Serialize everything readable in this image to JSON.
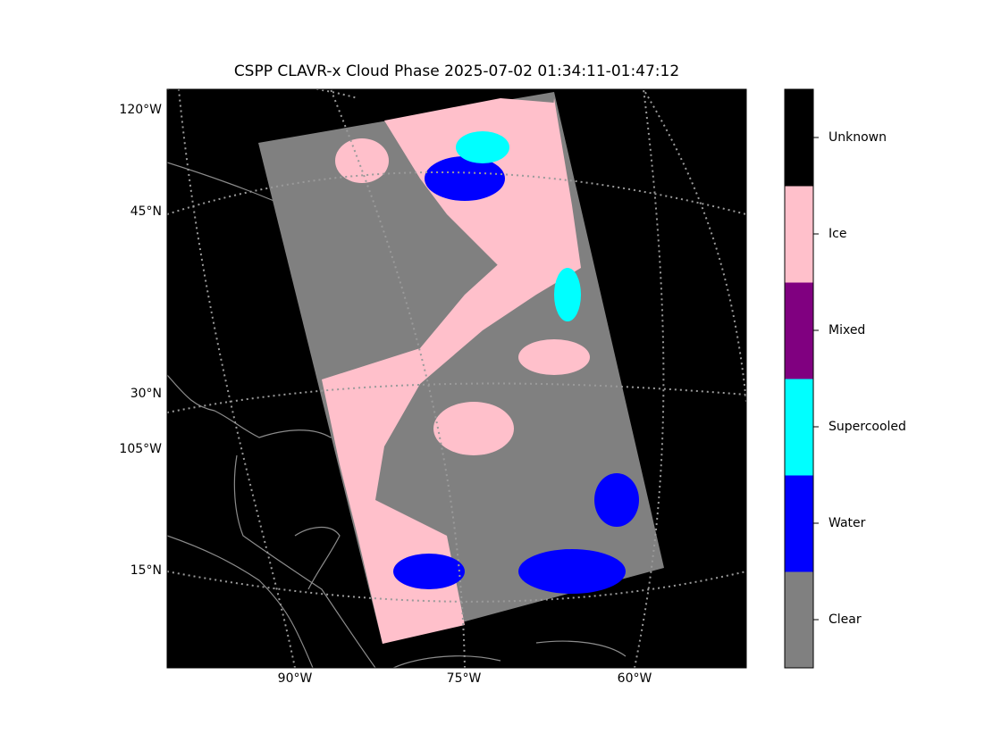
{
  "title": "CSPP CLAVR-x Cloud Phase 2025-07-02 01:34:11-01:47:12",
  "map": {
    "left_labels": [
      "120°W",
      "45°N",
      "30°N",
      "105°W",
      "15°N"
    ],
    "bottom_labels": [
      "90°W",
      "75°W",
      "60°W"
    ]
  },
  "colorbar": {
    "classes": [
      {
        "label": "Clear",
        "color": "#808080"
      },
      {
        "label": "Water",
        "color": "#0000ff"
      },
      {
        "label": "Supercooled",
        "color": "#00ffff"
      },
      {
        "label": "Mixed",
        "color": "#800080"
      },
      {
        "label": "Ice",
        "color": "#ffc0cb"
      },
      {
        "label": "Unknown",
        "color": "#000000"
      }
    ]
  }
}
